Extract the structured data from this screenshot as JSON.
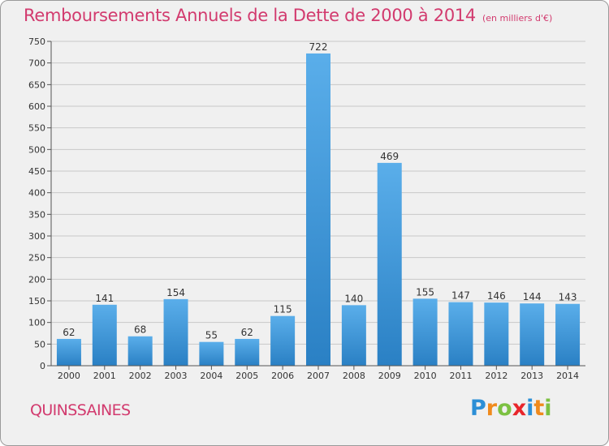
{
  "title": "Remboursements Annuels de la Dette de 2000 à 2014",
  "subtitle": "(en milliers d'€)",
  "town": "QUINSSAINES",
  "logo": {
    "letters": [
      "P",
      "r",
      "o",
      "x",
      "i",
      "t",
      "i"
    ],
    "colors": [
      "#2c8fd6",
      "#f08a1c",
      "#7cc142",
      "#e8262b",
      "#2c8fd6",
      "#f08a1c",
      "#7cc142"
    ]
  },
  "colors": {
    "accent": "#d23a6e",
    "bar_light": "#5aaeea",
    "bar_dark": "#2a80c4",
    "background": "#f0f0f0"
  },
  "chart_data": {
    "type": "bar",
    "categories": [
      "2000",
      "2001",
      "2002",
      "2003",
      "2004",
      "2005",
      "2006",
      "2007",
      "2008",
      "2009",
      "2010",
      "2011",
      "2012",
      "2013",
      "2014"
    ],
    "values": [
      62,
      141,
      68,
      154,
      55,
      62,
      115,
      722,
      140,
      469,
      155,
      147,
      146,
      144,
      143
    ],
    "ylim": [
      0,
      750
    ],
    "yticks": [
      0,
      50,
      100,
      150,
      200,
      250,
      300,
      350,
      400,
      450,
      500,
      550,
      600,
      650,
      700,
      750
    ],
    "grid": true,
    "xlabel": "",
    "ylabel": ""
  }
}
